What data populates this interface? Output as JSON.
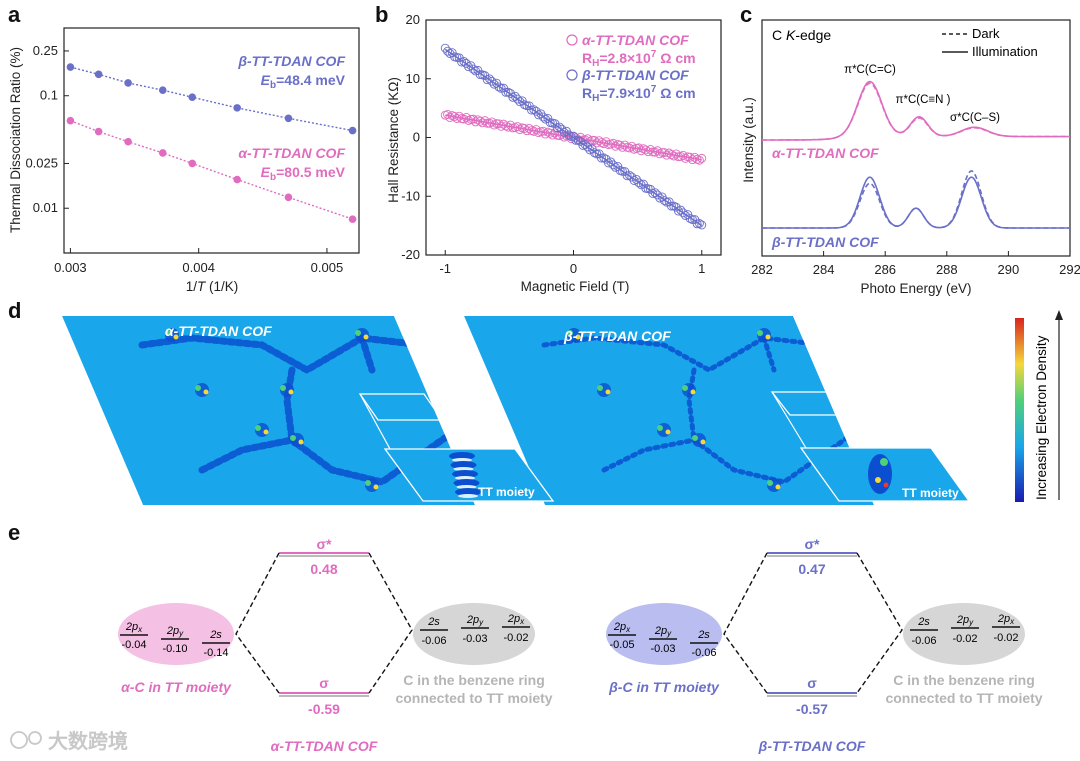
{
  "panel_labels": {
    "a": "a",
    "b": "b",
    "c": "c",
    "d": "d",
    "e": "e"
  },
  "chart_data": [
    {
      "panel": "a",
      "type": "scatter",
      "title": "",
      "xlabel": "1/T (1/K)",
      "xlabel_pre": "1/",
      "xlabel_T": "T",
      "xlabel_post": " (1/K)",
      "ylabel": "Thermal Dissociation Ratio (%)",
      "xlim": [
        0.00295,
        0.00525
      ],
      "ylim_log": [
        0.004,
        0.4
      ],
      "yscale": "log",
      "xticks": [
        0.003,
        0.004,
        0.005
      ],
      "xtick_labels": [
        "0.003",
        "0.004",
        "0.005"
      ],
      "yticks": [
        0.01,
        0.025,
        0.1,
        0.25
      ],
      "ytick_labels": [
        "0.01",
        "0.025",
        "0.1",
        "0.25"
      ],
      "series": [
        {
          "name": "β-TT-TDAN COF",
          "color": "#6a6fc8",
          "x": [
            0.003,
            0.00322,
            0.00345,
            0.00372,
            0.00395,
            0.0043,
            0.0047,
            0.0052
          ],
          "y": [
            0.18,
            0.155,
            0.13,
            0.112,
            0.097,
            0.078,
            0.063,
            0.049
          ],
          "label_line1": "β-TT-TDAN COF",
          "label_line2_pre": "E",
          "label_line2_sub": "b",
          "label_line2_post": "=48.4 meV"
        },
        {
          "name": "α-TT-TDAN COF",
          "color": "#e06cc0",
          "x": [
            0.003,
            0.00322,
            0.00345,
            0.00372,
            0.00395,
            0.0043,
            0.0047,
            0.0052
          ],
          "y": [
            0.06,
            0.048,
            0.039,
            0.031,
            0.025,
            0.018,
            0.0125,
            0.008
          ],
          "label_line1": "α-TT-TDAN COF",
          "label_line2_pre": "E",
          "label_line2_sub": "b",
          "label_line2_post": "=80.5 meV"
        }
      ]
    },
    {
      "panel": "b",
      "type": "scatter",
      "xlabel": "Magnetic Field (T)",
      "ylabel": "Hall Resistance (KΩ)",
      "xlim": [
        -1.15,
        1.15
      ],
      "ylim": [
        -20,
        20
      ],
      "xticks": [
        -1,
        0,
        1
      ],
      "xtick_labels": [
        "-1",
        "0",
        "1"
      ],
      "yticks": [
        -20,
        -10,
        0,
        10,
        20
      ],
      "ytick_labels": [
        "-20",
        "-10",
        "0",
        "10",
        "20"
      ],
      "series": [
        {
          "name": "α-TT-TDAN COF",
          "color": "#e06cc0",
          "slope": -3.8,
          "x_range": [
            -1,
            1
          ],
          "legend_line1": "α-TT-TDAN COF",
          "legend_line2_pre": "R",
          "legend_line2_sub": "H",
          "legend_line2_post": "=2.8×10",
          "legend_line2_sup": "7",
          "legend_line2_unit": " Ω cm"
        },
        {
          "name": "β-TT-TDAN COF",
          "color": "#6a6fc8",
          "slope": -15.0,
          "x_range": [
            -1,
            1
          ],
          "legend_line1": "β-TT-TDAN COF",
          "legend_line2_pre": "R",
          "legend_line2_sub": "H",
          "legend_line2_post": "=7.9×10",
          "legend_line2_sup": "7",
          "legend_line2_unit": " Ω cm"
        }
      ]
    },
    {
      "panel": "c",
      "type": "line",
      "xlabel": "Photo Energy (eV)",
      "ylabel": "Intensity (a.u.)",
      "xlim": [
        282,
        292
      ],
      "xticks": [
        282,
        284,
        286,
        288,
        290,
        292
      ],
      "xtick_labels": [
        "282",
        "284",
        "286",
        "288",
        "290",
        "292"
      ],
      "edge_label_pre": "C ",
      "edge_label_italic": "K",
      "edge_label_post": "-edge",
      "legend": [
        {
          "name": "Dark",
          "style": "dashed"
        },
        {
          "name": "Illumination",
          "style": "solid"
        }
      ],
      "peak_labels": [
        "π*C(C=C)",
        "π*C(C≡N )",
        "σ*C(C–S)"
      ],
      "series": [
        {
          "name": "α-TT-TDAN COF",
          "color": "#e06cc0",
          "label": "α-TT-TDAN COF",
          "peaks": [
            {
              "center": 285.5,
              "height_dark": 0.92,
              "height_illum": 0.95,
              "width": 0.55
            },
            {
              "center": 287.1,
              "height_dark": 0.32,
              "height_illum": 0.34,
              "width": 0.4
            },
            {
              "center": 288.9,
              "height_dark": 0.15,
              "height_illum": 0.16,
              "width": 0.6
            }
          ]
        },
        {
          "name": "β-TT-TDAN COF",
          "color": "#6a6fc8",
          "label": "β-TT-TDAN COF",
          "peaks": [
            {
              "center": 285.5,
              "height_dark": 0.72,
              "height_illum": 0.82,
              "width": 0.45
            },
            {
              "center": 287.0,
              "height_dark": 0.32,
              "height_illum": 0.32,
              "width": 0.35
            },
            {
              "center": 288.8,
              "height_dark": 0.92,
              "height_illum": 0.82,
              "width": 0.45
            }
          ]
        }
      ]
    }
  ],
  "panel_d": {
    "alpha_title": "α-TT-TDAN COF",
    "beta_title": "β-TT-TDAN COF",
    "inset_label": "TT moiety",
    "colorbar_label": "Increasing Electron Density",
    "colors": {
      "bg": "#1aa6ea",
      "ring": "#0b4fd0",
      "hot": "#e63b2e",
      "warm": "#f5d83a",
      "green": "#4fd07a"
    }
  },
  "panel_e": {
    "alpha": {
      "sigma_star": "σ*",
      "sigma_star_value": "0.48",
      "sigma": "σ",
      "sigma_value": "-0.59",
      "left_orbitals": [
        {
          "name": "2p",
          "sub": "x",
          "value": "-0.04"
        },
        {
          "name": "2p",
          "sub": "y",
          "value": "-0.10"
        },
        {
          "name": "2s",
          "sub": "",
          "value": "-0.14"
        }
      ],
      "right_orbitals": [
        {
          "name": "2s",
          "sub": "",
          "value": "-0.06"
        },
        {
          "name": "2p",
          "sub": "y",
          "value": "-0.03"
        },
        {
          "name": "2p",
          "sub": "x",
          "value": "-0.02"
        }
      ],
      "left_caption": "α-C in TT moiety",
      "right_caption_1": "C in the benzene ring",
      "right_caption_2": "connected to TT moiety",
      "title": "α-TT-TDAN COF",
      "color": "#e06cc0",
      "fill": "#f4c0e3"
    },
    "beta": {
      "sigma_star": "σ*",
      "sigma_star_value": "0.47",
      "sigma": "σ",
      "sigma_value": "-0.57",
      "left_orbitals": [
        {
          "name": "2p",
          "sub": "x",
          "value": "-0.05"
        },
        {
          "name": "2p",
          "sub": "y",
          "value": "-0.03"
        },
        {
          "name": "2s",
          "sub": "",
          "value": "-0.06"
        }
      ],
      "right_orbitals": [
        {
          "name": "2s",
          "sub": "",
          "value": "-0.06"
        },
        {
          "name": "2p",
          "sub": "y",
          "value": "-0.02"
        },
        {
          "name": "2p",
          "sub": "x",
          "value": "-0.02"
        }
      ],
      "left_caption": "β-C in TT moiety",
      "right_caption_1": "C in the benzene ring",
      "right_caption_2": "connected to TT moiety",
      "title": "β-TT-TDAN COF",
      "color": "#6a6fc8",
      "fill": "#b9bdf0"
    },
    "grey_fill": "#d6d6d6"
  },
  "watermark": "大数跨境"
}
